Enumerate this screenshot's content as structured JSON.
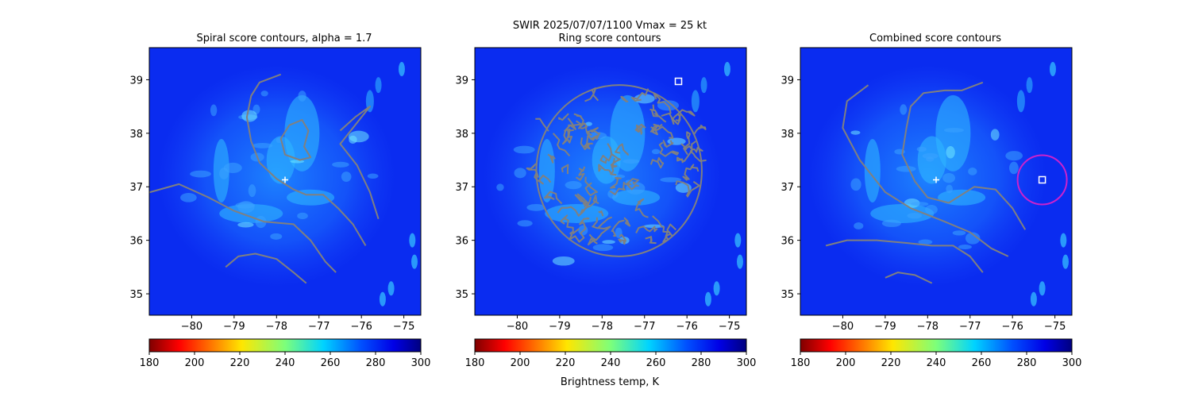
{
  "figure": {
    "suptitle_line1": "SWIR  2025/07/07/1100    Vmax = 25 kt",
    "colorbar_label": "Brightness temp, K"
  },
  "chart_data": [
    {
      "type": "heatmap",
      "title": "Spiral score contours, alpha =  1.7",
      "xlim": [
        -81.0,
        -74.6
      ],
      "ylim": [
        34.6,
        39.6
      ],
      "x_ticks": [
        -80,
        -79,
        -78,
        -77,
        -76,
        -75
      ],
      "x_tick_labels": [
        "−80",
        "−79",
        "−78",
        "−77",
        "−76",
        "−75"
      ],
      "y_ticks": [
        35,
        36,
        37,
        38,
        39
      ],
      "y_tick_labels": [
        "35",
        "36",
        "37",
        "38",
        "39"
      ],
      "colormap": "jet_r",
      "colorbar_range": [
        180,
        300
      ],
      "colorbar_ticks": [
        "180",
        "200",
        "220",
        "240",
        "260",
        "280",
        "300"
      ],
      "center_marker": {
        "symbol": "+",
        "x": -77.8,
        "y": 37.13,
        "color": "#ffffff"
      },
      "contour_color": "#808080",
      "contours": [
        [
          [
            -77.9,
            39.1
          ],
          [
            -78.4,
            38.95
          ],
          [
            -78.6,
            38.7
          ],
          [
            -78.7,
            38.3
          ],
          [
            -78.6,
            37.85
          ],
          [
            -78.4,
            37.45
          ],
          [
            -78.0,
            37.15
          ],
          [
            -77.6,
            36.95
          ],
          [
            -77.3,
            36.85
          ],
          [
            -76.9,
            36.85
          ],
          [
            -76.55,
            36.6
          ],
          [
            -76.2,
            36.3
          ],
          [
            -75.9,
            35.9
          ]
        ],
        [
          [
            -81.2,
            36.85
          ],
          [
            -80.3,
            37.05
          ],
          [
            -79.6,
            36.8
          ],
          [
            -79.0,
            36.55
          ],
          [
            -78.3,
            36.35
          ],
          [
            -77.6,
            36.3
          ],
          [
            -77.2,
            36.0
          ],
          [
            -76.85,
            35.6
          ],
          [
            -76.6,
            35.4
          ]
        ],
        [
          [
            -79.2,
            35.5
          ],
          [
            -78.9,
            35.7
          ],
          [
            -78.5,
            35.75
          ],
          [
            -78.0,
            35.65
          ],
          [
            -77.6,
            35.4
          ],
          [
            -77.3,
            35.2
          ]
        ],
        [
          [
            -76.5,
            38.05
          ],
          [
            -76.15,
            38.3
          ],
          [
            -75.8,
            38.5
          ],
          [
            -76.5,
            37.8
          ],
          [
            -76.1,
            37.4
          ],
          [
            -75.8,
            36.9
          ],
          [
            -75.6,
            36.4
          ]
        ],
        [
          [
            -77.7,
            38.15
          ],
          [
            -77.4,
            38.25
          ],
          [
            -77.25,
            38.05
          ],
          [
            -77.35,
            37.75
          ],
          [
            -77.2,
            37.55
          ],
          [
            -77.45,
            37.5
          ],
          [
            -77.8,
            37.6
          ],
          [
            -77.9,
            37.9
          ],
          [
            -77.7,
            38.15
          ]
        ]
      ]
    },
    {
      "type": "heatmap",
      "title": "Ring score contours",
      "xlim": [
        -81.0,
        -74.6
      ],
      "ylim": [
        34.6,
        39.6
      ],
      "x_ticks": [
        -80,
        -79,
        -78,
        -77,
        -76,
        -75
      ],
      "x_tick_labels": [
        "−80",
        "−79",
        "−78",
        "−77",
        "−76",
        "−75"
      ],
      "y_ticks": [
        35,
        36,
        37,
        38,
        39
      ],
      "y_tick_labels": [
        "35",
        "36",
        "37",
        "38",
        "39"
      ],
      "colormap": "jet_r",
      "colorbar_range": [
        180,
        300
      ],
      "colorbar_ticks": [
        "180",
        "200",
        "220",
        "240",
        "260",
        "280",
        "300"
      ],
      "square_marker": {
        "x": -76.2,
        "y": 38.97,
        "color": "#ffffff"
      },
      "contour_color": "#808080",
      "contour_region": {
        "center": [
          -77.6,
          37.3
        ],
        "rx": 1.95,
        "ry": 1.6
      }
    },
    {
      "type": "heatmap",
      "title": "Combined score contours",
      "xlim": [
        -81.0,
        -74.6
      ],
      "ylim": [
        34.6,
        39.6
      ],
      "x_ticks": [
        -80,
        -79,
        -78,
        -77,
        -76,
        -75
      ],
      "x_tick_labels": [
        "−80",
        "−79",
        "−78",
        "−77",
        "−76",
        "−75"
      ],
      "y_ticks": [
        35,
        36,
        37,
        38,
        39
      ],
      "y_tick_labels": [
        "35",
        "36",
        "37",
        "38",
        "39"
      ],
      "colormap": "jet_r",
      "colorbar_range": [
        180,
        300
      ],
      "colorbar_ticks": [
        "180",
        "200",
        "220",
        "240",
        "260",
        "280",
        "300"
      ],
      "center_marker": {
        "symbol": "+",
        "x": -77.8,
        "y": 37.13,
        "color": "#ffffff"
      },
      "square_marker": {
        "x": -75.3,
        "y": 37.13,
        "color": "#ffffff"
      },
      "circle": {
        "x": -75.3,
        "y": 37.13,
        "r": 0.58,
        "color": "#cc22cc"
      },
      "contour_color": "#808080",
      "contours": [
        [
          [
            -76.7,
            38.95
          ],
          [
            -77.2,
            38.8
          ],
          [
            -77.6,
            38.8
          ],
          [
            -78.1,
            38.75
          ],
          [
            -78.4,
            38.5
          ],
          [
            -78.5,
            38.1
          ],
          [
            -78.6,
            37.6
          ],
          [
            -78.3,
            37.1
          ],
          [
            -78.0,
            36.8
          ],
          [
            -77.5,
            36.7
          ],
          [
            -77.2,
            36.85
          ],
          [
            -76.9,
            37.0
          ],
          [
            -76.4,
            36.95
          ],
          [
            -76.0,
            36.6
          ],
          [
            -75.7,
            36.2
          ]
        ],
        [
          [
            -79.4,
            38.9
          ],
          [
            -79.9,
            38.6
          ],
          [
            -80.0,
            38.1
          ],
          [
            -79.6,
            37.5
          ],
          [
            -79.0,
            36.9
          ],
          [
            -78.4,
            36.6
          ],
          [
            -77.6,
            36.35
          ],
          [
            -77.0,
            36.15
          ],
          [
            -76.5,
            35.85
          ],
          [
            -76.1,
            35.7
          ]
        ],
        [
          [
            -80.4,
            35.9
          ],
          [
            -79.9,
            36.0
          ],
          [
            -79.2,
            36.0
          ],
          [
            -78.5,
            35.95
          ],
          [
            -77.9,
            35.9
          ],
          [
            -77.4,
            35.9
          ],
          [
            -77.0,
            35.7
          ],
          [
            -76.7,
            35.4
          ]
        ],
        [
          [
            -79.0,
            35.3
          ],
          [
            -78.7,
            35.4
          ],
          [
            -78.3,
            35.35
          ],
          [
            -77.9,
            35.2
          ]
        ]
      ]
    }
  ]
}
